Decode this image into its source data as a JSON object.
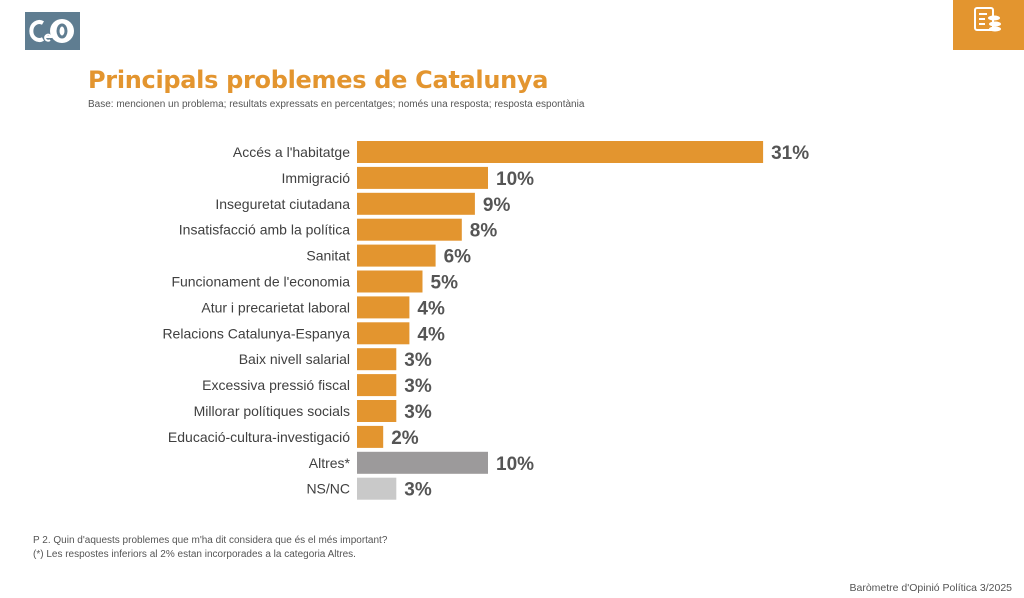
{
  "header": {
    "logo_text": "CeO",
    "corner_icon": "money-report-icon",
    "brand_color": "#e3952f"
  },
  "chart_data": {
    "type": "bar",
    "orientation": "horizontal",
    "title": "Principals problemes de Catalunya",
    "subtitle": "Base: mencionen un problema; resultats expressats en percentatges; només una resposta; resposta espontània",
    "categories": [
      "Accés a l'habitatge",
      "Immigració",
      "Inseguretat ciutadana",
      "Insatisfacció amb la política",
      "Sanitat",
      "Funcionament de l'economia",
      "Atur i precarietat laboral",
      "Relacions Catalunya-Espanya",
      "Baix nivell salarial",
      "Excessiva pressió fiscal",
      "Millorar polítiques socials",
      "Educació-cultura-investigació",
      "Altres*",
      "NS/NC"
    ],
    "values": [
      31,
      10,
      9,
      8,
      6,
      5,
      4,
      4,
      3,
      3,
      3,
      2,
      10,
      3
    ],
    "value_labels": [
      "31%",
      "10%",
      "9%",
      "8%",
      "6%",
      "5%",
      "4%",
      "4%",
      "3%",
      "3%",
      "3%",
      "2%",
      "10%",
      "3%"
    ],
    "colors": [
      "#e3952f",
      "#e3952f",
      "#e3952f",
      "#e3952f",
      "#e3952f",
      "#e3952f",
      "#e3952f",
      "#e3952f",
      "#e3952f",
      "#e3952f",
      "#e3952f",
      "#e3952f",
      "#9c9a9b",
      "#c9c9c9"
    ],
    "unit": "%",
    "grid": false
  },
  "notes": [
    "P 2. Quin d'aquests problemes que m'ha dit considera que és el més important?",
    "(*) Les respostes inferiors al 2% estan incorporades a la categoria Altres."
  ],
  "footer": "Baròmetre d'Opinió Política 3/2025"
}
